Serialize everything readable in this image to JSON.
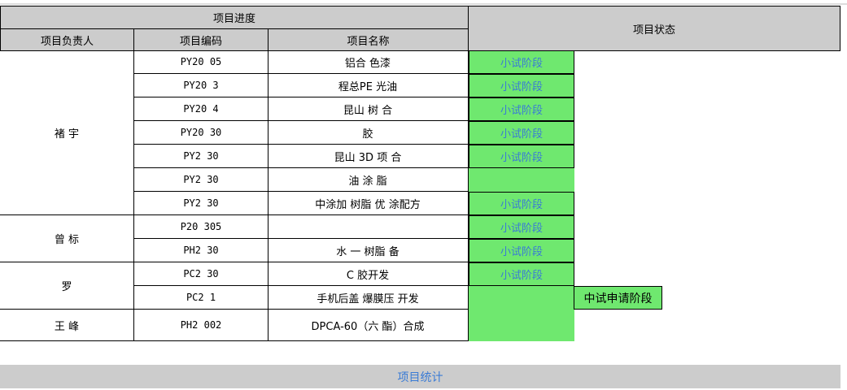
{
  "header": {
    "progress": "项目进度",
    "status": "项目状态",
    "owner": "项目负责人",
    "code": "项目编码",
    "name": "项目名称"
  },
  "owners": [
    {
      "name": "褚 宇",
      "rows": 7
    },
    {
      "name": "曾 标",
      "rows": 2
    },
    {
      "name": "罗",
      "rows": 2
    },
    {
      "name": "王 峰",
      "rows": 1
    }
  ],
  "rows": [
    {
      "code": "PY20    05",
      "name": "铝合    色漆",
      "status": "小试阶段"
    },
    {
      "code": "PY20     3",
      "name": "程总PE     光油",
      "status": "小试阶段"
    },
    {
      "code": "PY20     4",
      "name": "昆山    树    合",
      "status": "小试阶段"
    },
    {
      "code": "PY20   30",
      "name": "    胶",
      "status": "小试阶段"
    },
    {
      "code": "PY2   30",
      "name": "昆山  3D  项  合",
      "status": "小试阶段"
    },
    {
      "code": "PY2   30",
      "name": "油   涂   脂",
      "status": ""
    },
    {
      "code": "PY2   30",
      "name": "中涂加  树脂  优  涂配方",
      "status": "小试阶段"
    },
    {
      "code": "P20   305",
      "name": "",
      "status": "小试阶段"
    },
    {
      "code": "PH2   30",
      "name": "水   一  树脂   备",
      "status": "小试阶段"
    },
    {
      "code": "PC2   30",
      "name": "C  胶开发",
      "status": "小试阶段"
    },
    {
      "code": "PC2      1",
      "name": "手机后盖  爆膜压  开发",
      "status": "",
      "extra_status": "中试申请阶段"
    },
    {
      "code": "PH2      002",
      "name": "DPCA-60（六    酯）合成",
      "status": ""
    }
  ],
  "footer": {
    "label": "项目统计"
  },
  "colors": {
    "green": "#6fe86f",
    "header": "#cccccc",
    "link": "#3a7bd5"
  }
}
